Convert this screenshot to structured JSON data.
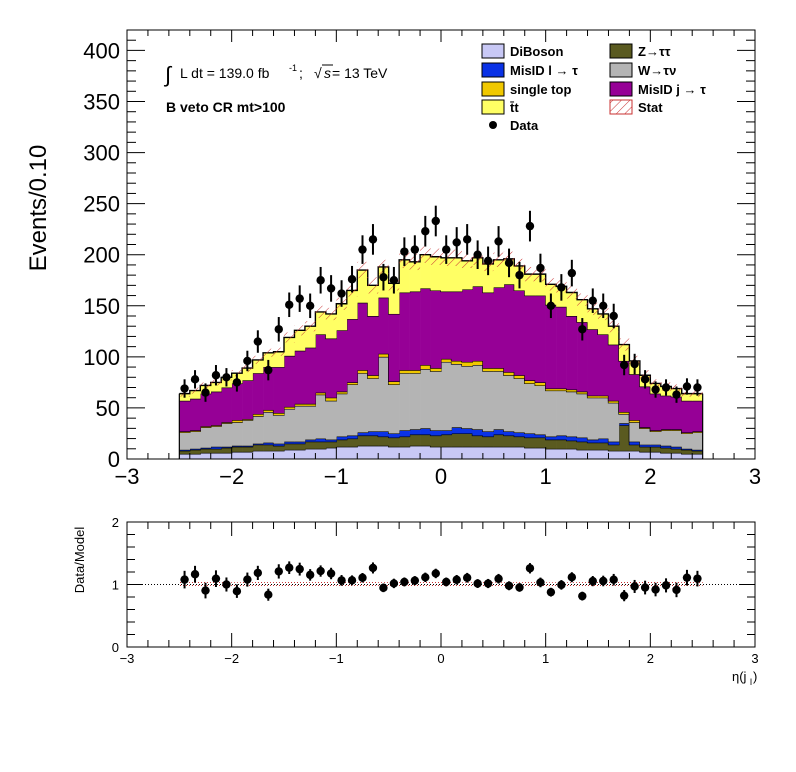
{
  "chart_data": [
    {
      "type": "stacked-histogram",
      "ylabel": "Events/0.10",
      "xlim": [
        -3,
        3
      ],
      "ylim": [
        0,
        420
      ],
      "y_ticks": [
        "0",
        "50",
        "100",
        "150",
        "200",
        "250",
        "300",
        "350",
        "400"
      ],
      "x_ticks": [
        "−3",
        "−2",
        "−1",
        "0",
        "1",
        "2",
        "3"
      ],
      "annotation_lumi_integral": "∫",
      "annotation_lumi": "L dt = 139.0 fb",
      "annotation_lumi_exp": "-1",
      "annotation_sep": ";",
      "annotation_sqrt": "√",
      "annotation_s": "s",
      "annotation_energy": " = 13 TeV",
      "annotation_region": "B veto CR mt>100",
      "legend": [
        {
          "label": "DiBoson",
          "color": "#c8c8f5",
          "kind": "fill"
        },
        {
          "label": "Z→ττ",
          "color": "#5a5a20",
          "kind": "fill"
        },
        {
          "label": "MisID l → τ",
          "color": "#0a32e6",
          "kind": "fill"
        },
        {
          "label": "W→τν",
          "color": "#b4b4b4",
          "kind": "fill"
        },
        {
          "label": "single top",
          "color": "#f0c800",
          "kind": "fill"
        },
        {
          "label": "MisID j → τ",
          "color": "#960096",
          "kind": "fill"
        },
        {
          "label": "t̄t",
          "color": "#ffff64",
          "kind": "fill"
        },
        {
          "label": "Stat",
          "color": "#c83232",
          "kind": "hatch"
        },
        {
          "label": "Data",
          "color": "#000000",
          "kind": "marker"
        }
      ],
      "x": [
        -2.45,
        -2.35,
        -2.25,
        -2.15,
        -2.05,
        -1.95,
        -1.85,
        -1.75,
        -1.65,
        -1.55,
        -1.45,
        -1.35,
        -1.25,
        -1.15,
        -1.05,
        -0.95,
        -0.85,
        -0.75,
        -0.65,
        -0.55,
        -0.45,
        -0.35,
        -0.25,
        -0.15,
        -0.05,
        0.05,
        0.15,
        0.25,
        0.35,
        0.45,
        0.55,
        0.65,
        0.75,
        0.85,
        0.95,
        1.05,
        1.15,
        1.25,
        1.35,
        1.45,
        1.55,
        1.65,
        1.75,
        1.85,
        1.95,
        2.05,
        2.15,
        2.25,
        2.35,
        2.45
      ],
      "series": [
        {
          "name": "DiBoson",
          "values": [
            5,
            5,
            6,
            6,
            6,
            7,
            7,
            8,
            8,
            8,
            9,
            9,
            10,
            10,
            11,
            12,
            12,
            13,
            13,
            13,
            12,
            12,
            13,
            13,
            12,
            12,
            12,
            12,
            12,
            12,
            12,
            12,
            12,
            11,
            11,
            10,
            10,
            10,
            9,
            9,
            9,
            8,
            8,
            8,
            7,
            7,
            6,
            6,
            5,
            5
          ]
        },
        {
          "name": "Z→ττ",
          "values": [
            3,
            4,
            4,
            4,
            5,
            5,
            5,
            6,
            6,
            5,
            6,
            6,
            7,
            7,
            6,
            7,
            8,
            10,
            10,
            9,
            9,
            10,
            11,
            11,
            11,
            12,
            13,
            13,
            11,
            10,
            12,
            11,
            10,
            10,
            10,
            9,
            9,
            8,
            8,
            7,
            7,
            6,
            25,
            6,
            5,
            5,
            5,
            4,
            4,
            3
          ]
        },
        {
          "name": "MisID l → τ",
          "values": [
            1,
            1,
            1,
            2,
            1,
            1,
            1,
            1,
            2,
            2,
            2,
            2,
            2,
            3,
            2,
            3,
            3,
            3,
            4,
            5,
            4,
            6,
            5,
            6,
            5,
            4,
            6,
            5,
            6,
            5,
            5,
            4,
            4,
            4,
            3,
            3,
            4,
            4,
            4,
            3,
            4,
            3,
            2,
            3,
            2,
            2,
            2,
            2,
            1,
            1
          ]
        },
        {
          "name": "W→τν",
          "values": [
            17,
            17,
            20,
            20,
            23,
            23,
            25,
            27,
            30,
            28,
            32,
            35,
            33,
            43,
            38,
            42,
            50,
            58,
            52,
            73,
            48,
            56,
            55,
            58,
            58,
            67,
            62,
            61,
            63,
            59,
            57,
            55,
            53,
            49,
            48,
            45,
            44,
            44,
            43,
            41,
            40,
            38,
            9,
            19,
            16,
            13,
            15,
            16,
            15,
            17
          ]
        },
        {
          "name": "single top",
          "values": [
            1,
            1,
            1,
            1,
            1,
            2,
            1,
            2,
            2,
            2,
            2,
            2,
            2,
            2,
            3,
            2,
            2,
            3,
            3,
            3,
            3,
            3,
            3,
            4,
            3,
            3,
            3,
            4,
            4,
            3,
            3,
            3,
            3,
            3,
            3,
            2,
            2,
            2,
            2,
            2,
            2,
            2,
            2,
            2,
            1,
            1,
            1,
            1,
            1,
            1
          ]
        },
        {
          "name": "MisID j → τ",
          "values": [
            30,
            31,
            32,
            33,
            34,
            36,
            38,
            40,
            42,
            45,
            50,
            52,
            55,
            57,
            58,
            60,
            62,
            66,
            58,
            55,
            66,
            76,
            77,
            75,
            76,
            66,
            68,
            71,
            73,
            74,
            79,
            86,
            83,
            83,
            85,
            82,
            80,
            72,
            68,
            65,
            60,
            55,
            50,
            45,
            40,
            36,
            33,
            32,
            31,
            30
          ]
        },
        {
          "name": "t̄t",
          "values": [
            7,
            8,
            8,
            9,
            10,
            10,
            12,
            13,
            14,
            15,
            18,
            20,
            21,
            22,
            24,
            26,
            28,
            32,
            30,
            30,
            30,
            32,
            29,
            33,
            33,
            33,
            33,
            28,
            28,
            28,
            27,
            25,
            24,
            21,
            21,
            20,
            20,
            23,
            22,
            20,
            20,
            18,
            16,
            13,
            11,
            10,
            9,
            8,
            7,
            7
          ]
        }
      ],
      "data_values": [
        69,
        78,
        65,
        82,
        80,
        75,
        96,
        115,
        87,
        127,
        151,
        157,
        150,
        175,
        167,
        162,
        176,
        205,
        215,
        178,
        175,
        203,
        205,
        223,
        233,
        205,
        212,
        215,
        200,
        194,
        213,
        192,
        180,
        228,
        187,
        150,
        168,
        182,
        127,
        155,
        150,
        140,
        92,
        93,
        78,
        68,
        70,
        63,
        71,
        70
      ],
      "data_errors": [
        9,
        9,
        9,
        10,
        9,
        9,
        10,
        11,
        10,
        12,
        12,
        13,
        12,
        13,
        13,
        13,
        13,
        14,
        15,
        13,
        13,
        14,
        14,
        15,
        15,
        14,
        15,
        15,
        14,
        14,
        15,
        14,
        13,
        15,
        14,
        12,
        13,
        13,
        11,
        12,
        12,
        12,
        10,
        10,
        9,
        8,
        8,
        8,
        8,
        8
      ],
      "stat_errors": [
        3,
        3,
        3,
        3,
        3,
        3,
        4,
        4,
        4,
        4,
        5,
        5,
        5,
        6,
        6,
        6,
        6,
        8,
        8,
        7,
        7,
        8,
        8,
        8,
        8,
        8,
        8,
        7,
        7,
        7,
        7,
        7,
        7,
        7,
        7,
        6,
        6,
        6,
        6,
        6,
        6,
        6,
        6,
        5,
        5,
        4,
        4,
        4,
        3,
        3
      ]
    },
    {
      "type": "ratio",
      "ylabel": "Data/Model",
      "xlabel": "η(j",
      "xlabel_sub": "l",
      "xlabel_close": ")",
      "xlim": [
        -3,
        3
      ],
      "ylim": [
        0,
        2
      ],
      "y_ticks": [
        "0",
        "1",
        "2"
      ],
      "x_ticks": [
        "−3",
        "−2",
        "−1",
        "0",
        "1",
        "2",
        "3"
      ],
      "reference_line": 1
    }
  ]
}
